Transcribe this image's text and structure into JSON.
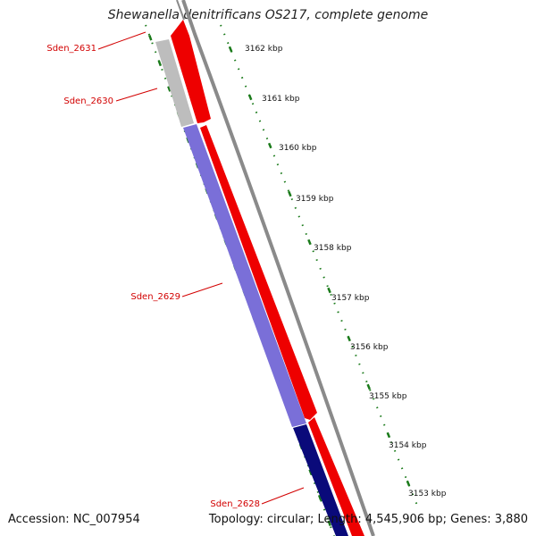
{
  "title": "Shewanella denitrificans OS217, complete genome",
  "accession": "Accession: NC_007954",
  "summary": "Topology: circular; Length: 4,545,906 bp; Genes: 3,880",
  "colors": {
    "backbone": "#8a8a8a",
    "cds_forward": "#ee0000",
    "gene_1": "#bdbdbd",
    "gene_2": "#7a6fd8",
    "gene_3": "#0a0a7a",
    "ticks": "#1a7a1a",
    "label": "#d20000"
  },
  "ticks": [
    "3162 kbp",
    "3161 kbp",
    "3160 kbp",
    "3159 kbp",
    "3158 kbp",
    "3157 kbp",
    "3156 kbp",
    "3155 kbp",
    "3154 kbp",
    "3153 kbp"
  ],
  "genes": [
    {
      "name": "Sden_2631"
    },
    {
      "name": "Sden_2630"
    },
    {
      "name": "Sden_2629"
    },
    {
      "name": "Sden_2628"
    }
  ]
}
